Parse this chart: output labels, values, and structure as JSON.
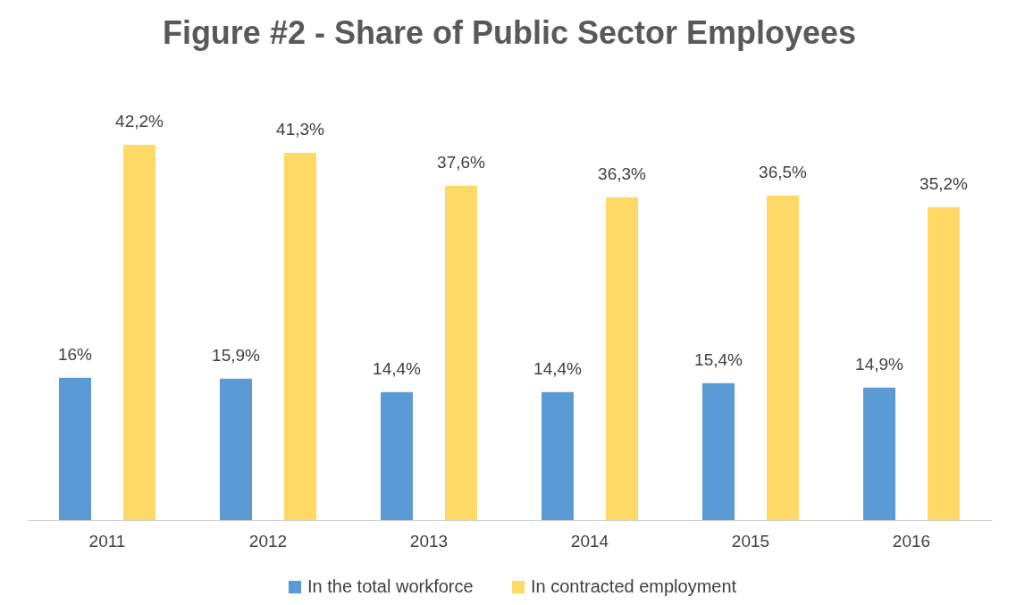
{
  "chart_data": {
    "type": "bar",
    "title": "Figure #2 - Share of Public Sector Employees",
    "categories": [
      "2011",
      "2012",
      "2013",
      "2014",
      "2015",
      "2016"
    ],
    "series": [
      {
        "name": "In the total workforce",
        "color": "#5b9bd5",
        "values": [
          16,
          15.9,
          14.4,
          14.4,
          15.4,
          14.9
        ],
        "value_labels": [
          "16%",
          "15,9%",
          "14,4%",
          "14,4%",
          "15,4%",
          "14,9%"
        ]
      },
      {
        "name": "In contracted employment",
        "color": "#ffd966",
        "values": [
          42.2,
          41.3,
          37.6,
          36.3,
          36.5,
          35.2
        ],
        "value_labels": [
          "42,2%",
          "41,3%",
          "37,6%",
          "36,3%",
          "36,5%",
          "35,2%"
        ]
      }
    ],
    "tick_labels": "x",
    "legend": "bottom",
    "grid": false
  }
}
